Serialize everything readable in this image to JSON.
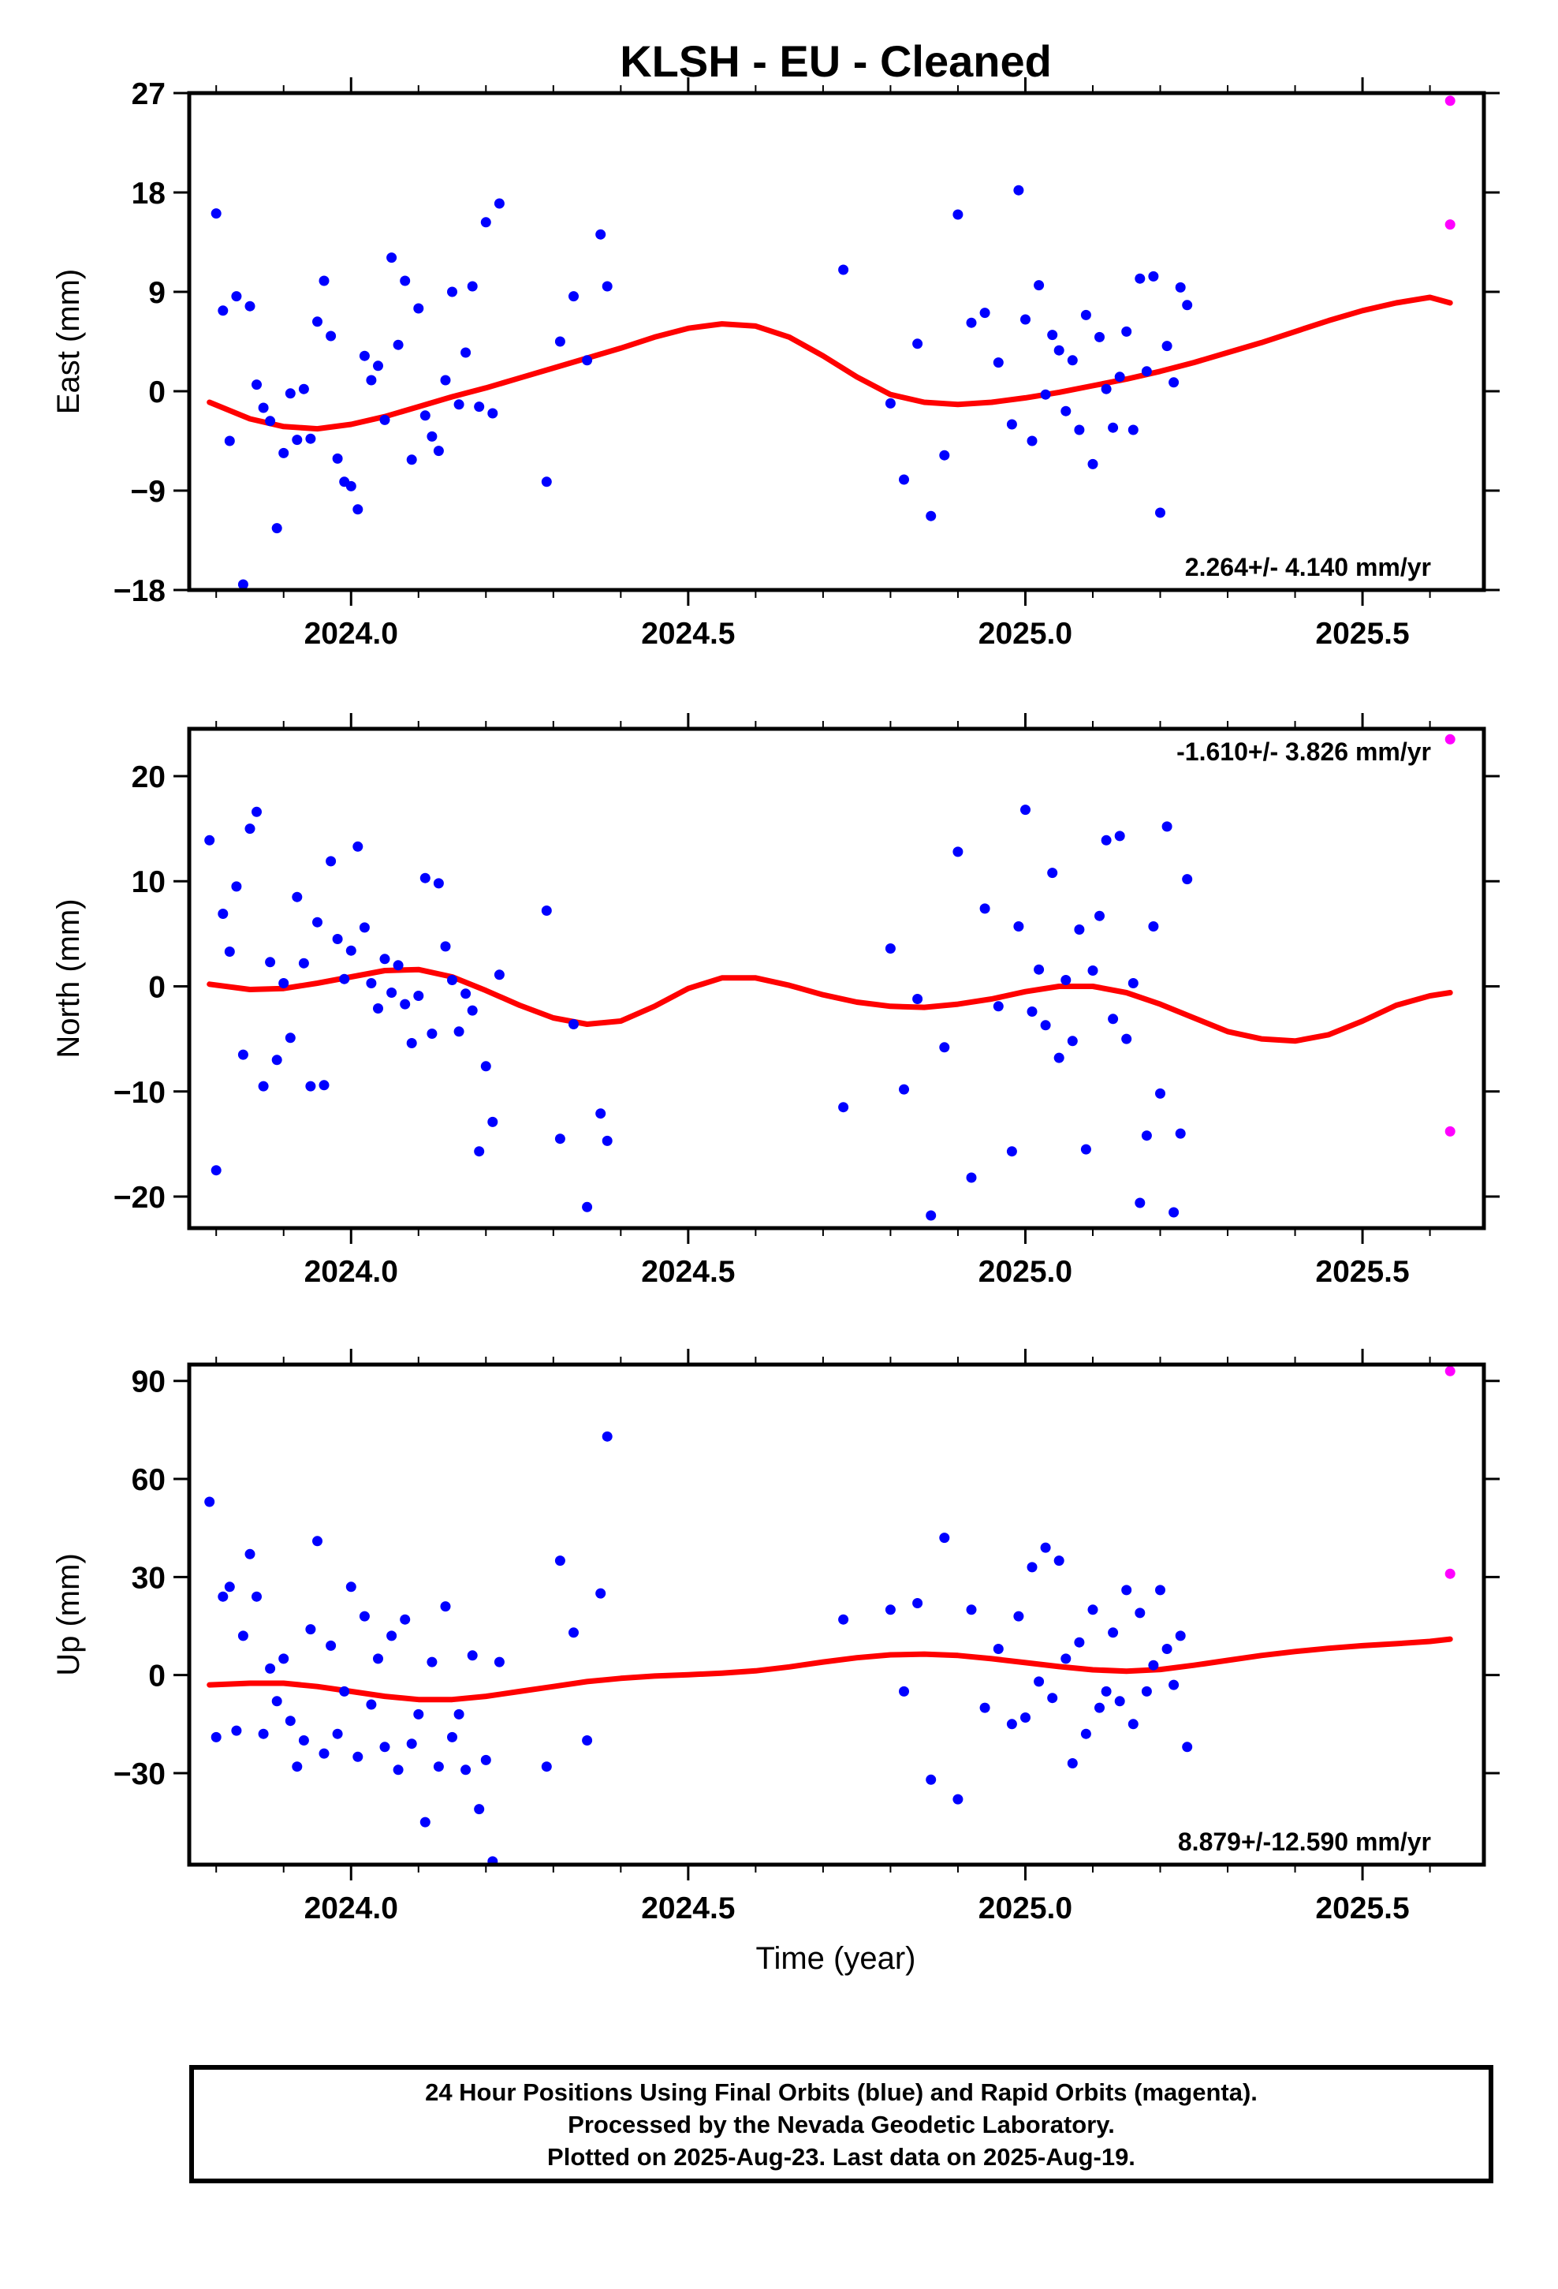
{
  "title": "KLSH  - EU - Cleaned",
  "xlabel": "Time (year)",
  "colors": {
    "final_orbits": "#0000ff",
    "rapid_orbits": "#ff00ff",
    "model": "#ff0000"
  },
  "footer": {
    "line1": "24 Hour Positions Using Final Orbits (blue) and Rapid Orbits (magenta).",
    "line2": "Processed by the Nevada Geodetic Laboratory.",
    "line3": "Plotted on 2025-Aug-23. Last data on 2025-Aug-19."
  },
  "chart_data": [
    {
      "type": "scatter",
      "component": "east",
      "title": "KLSH  - EU - Cleaned",
      "xlabel": "",
      "ylabel": "East (mm)",
      "xlim": [
        2023.76,
        2025.68
      ],
      "ylim": [
        -18,
        27
      ],
      "x_ticks": [
        2024.0,
        2024.5,
        2025.0,
        2025.5
      ],
      "x_tick_labels": [
        "2024.0",
        "2024.5",
        "2025.0",
        "2025.5"
      ],
      "y_ticks": [
        27,
        18,
        9,
        0,
        -9,
        -18
      ],
      "y_tick_labels": [
        "27",
        "18",
        "9",
        "0",
        "−9",
        "−18"
      ],
      "rate_label": "2.264+/- 4.140 mm/yr",
      "rate_position": "bottom-right",
      "model": {
        "name": "fit",
        "x": [
          2023.79,
          2023.85,
          2023.9,
          2023.95,
          2024.0,
          2024.05,
          2024.1,
          2024.15,
          2024.2,
          2024.25,
          2024.3,
          2024.35,
          2024.4,
          2024.45,
          2024.5,
          2024.55,
          2024.6,
          2024.65,
          2024.7,
          2024.75,
          2024.8,
          2024.85,
          2024.9,
          2024.95,
          2025.0,
          2025.05,
          2025.1,
          2025.15,
          2025.2,
          2025.25,
          2025.3,
          2025.35,
          2025.4,
          2025.45,
          2025.5,
          2025.55,
          2025.6,
          2025.63
        ],
        "y": [
          -1.0,
          -2.5,
          -3.2,
          -3.4,
          -3.0,
          -2.3,
          -1.4,
          -0.5,
          0.3,
          1.2,
          2.1,
          3.0,
          3.9,
          4.9,
          5.7,
          6.1,
          5.9,
          4.9,
          3.2,
          1.3,
          -0.3,
          -1.0,
          -1.2,
          -1.0,
          -0.6,
          -0.1,
          0.5,
          1.1,
          1.8,
          2.6,
          3.5,
          4.4,
          5.4,
          6.4,
          7.3,
          8.0,
          8.5,
          8.0
        ]
      },
      "series": [
        {
          "name": "final",
          "color": "#0000ff",
          "x": [
            2023.8,
            2023.81,
            2023.82,
            2023.83,
            2023.84,
            2023.85,
            2023.86,
            2023.87,
            2023.88,
            2023.89,
            2023.9,
            2023.91,
            2023.92,
            2023.93,
            2023.94,
            2023.95,
            2023.96,
            2023.97,
            2023.98,
            2023.99,
            2024.0,
            2024.01,
            2024.02,
            2024.03,
            2024.04,
            2024.05,
            2024.06,
            2024.07,
            2024.08,
            2024.09,
            2024.1,
            2024.11,
            2024.12,
            2024.13,
            2024.14,
            2024.15,
            2024.16,
            2024.17,
            2024.18,
            2024.19,
            2024.2,
            2024.21,
            2024.22,
            2024.29,
            2024.31,
            2024.33,
            2024.35,
            2024.37,
            2024.38,
            2024.73,
            2024.8,
            2024.82,
            2024.84,
            2024.86,
            2024.88,
            2024.9,
            2024.92,
            2024.94,
            2024.96,
            2024.98,
            2024.99,
            2025.0,
            2025.01,
            2025.02,
            2025.03,
            2025.04,
            2025.05,
            2025.06,
            2025.07,
            2025.08,
            2025.09,
            2025.1,
            2025.11,
            2025.12,
            2025.13,
            2025.14,
            2025.15,
            2025.16,
            2025.17,
            2025.18,
            2025.19,
            2025.2,
            2025.21,
            2025.22,
            2025.23,
            2025.24
          ],
          "y": [
            16.1,
            7.3,
            -4.5,
            8.6,
            -17.5,
            7.7,
            0.6,
            -1.5,
            -2.7,
            -12.4,
            -5.6,
            -0.2,
            -4.4,
            0.2,
            -4.3,
            6.3,
            10.0,
            5.0,
            -6.1,
            -8.2,
            -8.6,
            -10.7,
            3.2,
            1.0,
            2.3,
            -2.6,
            12.1,
            4.2,
            10.0,
            -6.2,
            7.5,
            -2.2,
            -4.1,
            -5.4,
            1.0,
            9.0,
            -1.2,
            3.5,
            9.5,
            -1.4,
            15.3,
            -2.0,
            17.0,
            -8.2,
            4.5,
            8.6,
            2.8,
            14.2,
            9.5,
            11.0,
            -1.1,
            -8.0,
            4.3,
            -11.3,
            -5.8,
            16.0,
            6.2,
            7.1,
            2.6,
            -3.0,
            18.2,
            6.5,
            -4.5,
            9.6,
            -0.3,
            5.1,
            3.7,
            -1.8,
            2.8,
            -3.5,
            6.9,
            -6.6,
            4.9,
            0.2,
            -3.3,
            1.3,
            5.4,
            -3.5,
            10.2,
            1.8,
            10.4,
            -11.0,
            4.1,
            0.8,
            9.4,
            7.8
          ]
        },
        {
          "name": "rapid",
          "color": "#ff00ff",
          "x": [
            2025.63,
            2025.63
          ],
          "y": [
            26.3,
            15.1
          ]
        }
      ]
    },
    {
      "type": "scatter",
      "component": "north",
      "xlabel": "",
      "ylabel": "North (mm)",
      "xlim": [
        2023.76,
        2025.68
      ],
      "ylim": [
        -23,
        24.5
      ],
      "x_ticks": [
        2024.0,
        2024.5,
        2025.0,
        2025.5
      ],
      "x_tick_labels": [
        "2024.0",
        "2024.5",
        "2025.0",
        "2025.5"
      ],
      "y_ticks": [
        20,
        10,
        0,
        -10,
        -20
      ],
      "y_tick_labels": [
        "20",
        "10",
        "0",
        "−10",
        "−20"
      ],
      "rate_label": "-1.610+/- 3.826 mm/yr",
      "rate_position": "top-right",
      "model": {
        "name": "fit",
        "x": [
          2023.79,
          2023.85,
          2023.9,
          2023.95,
          2024.0,
          2024.05,
          2024.1,
          2024.15,
          2024.2,
          2024.25,
          2024.3,
          2024.35,
          2024.4,
          2024.45,
          2024.5,
          2024.55,
          2024.6,
          2024.65,
          2024.7,
          2024.75,
          2024.8,
          2024.85,
          2024.9,
          2024.95,
          2025.0,
          2025.05,
          2025.1,
          2025.15,
          2025.2,
          2025.25,
          2025.3,
          2025.35,
          2025.4,
          2025.45,
          2025.5,
          2025.55,
          2025.6,
          2025.63
        ],
        "y": [
          0.2,
          -0.3,
          -0.2,
          0.3,
          0.9,
          1.5,
          1.6,
          0.9,
          -0.4,
          -1.8,
          -3.0,
          -3.6,
          -3.3,
          -1.9,
          -0.2,
          0.8,
          0.8,
          0.1,
          -0.8,
          -1.5,
          -1.9,
          -2.0,
          -1.7,
          -1.2,
          -0.5,
          0.0,
          0.0,
          -0.6,
          -1.7,
          -3.0,
          -4.3,
          -5.0,
          -5.2,
          -4.6,
          -3.3,
          -1.8,
          -0.9,
          -0.6
        ]
      },
      "series": [
        {
          "name": "final",
          "color": "#0000ff",
          "x": [
            2023.79,
            2023.8,
            2023.81,
            2023.82,
            2023.83,
            2023.84,
            2023.85,
            2023.86,
            2023.87,
            2023.88,
            2023.89,
            2023.9,
            2023.91,
            2023.92,
            2023.93,
            2023.94,
            2023.95,
            2023.96,
            2023.97,
            2023.98,
            2023.99,
            2024.0,
            2024.01,
            2024.02,
            2024.03,
            2024.04,
            2024.05,
            2024.06,
            2024.07,
            2024.08,
            2024.09,
            2024.1,
            2024.11,
            2024.12,
            2024.13,
            2024.14,
            2024.15,
            2024.16,
            2024.17,
            2024.18,
            2024.19,
            2024.2,
            2024.21,
            2024.22,
            2024.29,
            2024.31,
            2024.33,
            2024.35,
            2024.37,
            2024.38,
            2024.73,
            2024.8,
            2024.82,
            2024.84,
            2024.86,
            2024.88,
            2024.9,
            2024.92,
            2024.94,
            2024.96,
            2024.98,
            2024.99,
            2025.0,
            2025.01,
            2025.02,
            2025.03,
            2025.04,
            2025.05,
            2025.06,
            2025.07,
            2025.08,
            2025.09,
            2025.1,
            2025.11,
            2025.12,
            2025.13,
            2025.14,
            2025.15,
            2025.16,
            2025.17,
            2025.18,
            2025.19,
            2025.2,
            2025.21,
            2025.22,
            2025.23,
            2025.24
          ],
          "y": [
            13.9,
            -17.5,
            6.9,
            3.3,
            9.5,
            -6.5,
            15.0,
            16.6,
            -9.5,
            2.3,
            -7.0,
            0.3,
            -4.9,
            8.5,
            2.2,
            -9.5,
            6.1,
            -9.4,
            11.9,
            4.5,
            0.7,
            3.4,
            13.3,
            5.6,
            0.3,
            -2.1,
            2.6,
            -0.6,
            2.0,
            -1.7,
            -5.4,
            -0.9,
            10.3,
            -4.5,
            9.8,
            3.8,
            0.6,
            -4.3,
            -0.7,
            -2.3,
            -15.7,
            -7.6,
            -12.9,
            1.1,
            7.2,
            -14.5,
            -3.6,
            -21.0,
            -12.1,
            -14.7,
            -11.5,
            3.6,
            -9.8,
            -1.2,
            -21.8,
            -5.8,
            12.8,
            -18.2,
            7.4,
            -1.9,
            -15.7,
            5.7,
            16.8,
            -2.4,
            1.6,
            -3.7,
            10.8,
            -6.8,
            0.6,
            -5.2,
            5.4,
            -15.5,
            1.5,
            6.7,
            13.9,
            -3.1,
            14.3,
            -5.0,
            0.3,
            -20.6,
            -14.2,
            5.7,
            -10.2,
            15.2,
            -21.5,
            -14.0,
            10.2
          ]
        },
        {
          "name": "rapid",
          "color": "#ff00ff",
          "x": [
            2025.63,
            2025.63
          ],
          "y": [
            23.5,
            -13.8
          ]
        }
      ]
    },
    {
      "type": "scatter",
      "component": "up",
      "xlabel": "Time (year)",
      "ylabel": "Up (mm)",
      "xlim": [
        2023.76,
        2025.68
      ],
      "ylim": [
        -58,
        95
      ],
      "x_ticks": [
        2024.0,
        2024.5,
        2025.0,
        2025.5
      ],
      "x_tick_labels": [
        "2024.0",
        "2024.5",
        "2025.0",
        "2025.5"
      ],
      "y_ticks": [
        90,
        60,
        30,
        0,
        -30
      ],
      "y_tick_labels": [
        "90",
        "60",
        "30",
        "0",
        "−30"
      ],
      "rate_label": "8.879+/-12.590 mm/yr",
      "rate_position": "bottom-right",
      "model": {
        "name": "fit",
        "x": [
          2023.79,
          2023.85,
          2023.9,
          2023.95,
          2024.0,
          2024.05,
          2024.1,
          2024.15,
          2024.2,
          2024.25,
          2024.3,
          2024.35,
          2024.4,
          2024.45,
          2024.5,
          2024.55,
          2024.6,
          2024.65,
          2024.7,
          2024.75,
          2024.8,
          2024.85,
          2024.9,
          2024.95,
          2025.0,
          2025.05,
          2025.1,
          2025.15,
          2025.2,
          2025.25,
          2025.3,
          2025.35,
          2025.4,
          2025.45,
          2025.5,
          2025.55,
          2025.6,
          2025.63
        ],
        "y": [
          -3.0,
          -2.5,
          -2.5,
          -3.5,
          -5.0,
          -6.5,
          -7.5,
          -7.5,
          -6.5,
          -5.0,
          -3.5,
          -2.0,
          -1.0,
          -0.3,
          0.1,
          0.6,
          1.3,
          2.5,
          4.0,
          5.3,
          6.2,
          6.4,
          6.0,
          5.0,
          3.8,
          2.6,
          1.6,
          1.2,
          1.7,
          3.0,
          4.5,
          6.0,
          7.2,
          8.2,
          9.0,
          9.6,
          10.3,
          11.0
        ]
      },
      "series": [
        {
          "name": "final",
          "color": "#0000ff",
          "x": [
            2023.79,
            2023.8,
            2023.81,
            2023.82,
            2023.83,
            2023.84,
            2023.85,
            2023.86,
            2023.87,
            2023.88,
            2023.89,
            2023.9,
            2023.91,
            2023.92,
            2023.93,
            2023.94,
            2023.95,
            2023.96,
            2023.97,
            2023.98,
            2023.99,
            2024.0,
            2024.01,
            2024.02,
            2024.03,
            2024.04,
            2024.05,
            2024.06,
            2024.07,
            2024.08,
            2024.09,
            2024.1,
            2024.11,
            2024.12,
            2024.13,
            2024.14,
            2024.15,
            2024.16,
            2024.17,
            2024.18,
            2024.19,
            2024.2,
            2024.21,
            2024.22,
            2024.29,
            2024.31,
            2024.33,
            2024.35,
            2024.37,
            2024.38,
            2024.73,
            2024.8,
            2024.82,
            2024.84,
            2024.86,
            2024.88,
            2024.9,
            2024.92,
            2024.94,
            2024.96,
            2024.98,
            2024.99,
            2025.0,
            2025.01,
            2025.02,
            2025.03,
            2025.04,
            2025.05,
            2025.06,
            2025.07,
            2025.08,
            2025.09,
            2025.1,
            2025.11,
            2025.12,
            2025.13,
            2025.14,
            2025.15,
            2025.16,
            2025.17,
            2025.18,
            2025.19,
            2025.2,
            2025.21,
            2025.22,
            2025.23,
            2025.24
          ],
          "y": [
            53.0,
            -19.0,
            24.0,
            27.0,
            -17.0,
            12.0,
            37.0,
            24.0,
            -18.0,
            2.0,
            -8.0,
            5.0,
            -14.0,
            -28.0,
            -20.0,
            14.0,
            41.0,
            -24.0,
            9.0,
            -18.0,
            -5.0,
            27.0,
            -25.0,
            18.0,
            -9.0,
            5.0,
            -22.0,
            12.0,
            -29.0,
            17.0,
            -21.0,
            -12.0,
            -45.0,
            4.0,
            -28.0,
            21.0,
            -19.0,
            -12.0,
            -29.0,
            6.0,
            -41.0,
            -26.0,
            -57.0,
            4.0,
            -28.0,
            35.0,
            13.0,
            -20.0,
            25.0,
            73.0,
            17.0,
            20.0,
            -5.0,
            22.0,
            -32.0,
            42.0,
            -38.0,
            20.0,
            -10.0,
            8.0,
            -15.0,
            18.0,
            -13.0,
            33.0,
            -2.0,
            39.0,
            -7.0,
            35.0,
            5.0,
            -27.0,
            10.0,
            -18.0,
            20.0,
            -10.0,
            -5.0,
            13.0,
            -8.0,
            26.0,
            -15.0,
            19.0,
            -5.0,
            3.0,
            26.0,
            8.0,
            -3.0,
            12.0,
            -22.0
          ]
        },
        {
          "name": "rapid",
          "color": "#ff00ff",
          "x": [
            2025.63,
            2025.63
          ],
          "y": [
            93.0,
            31.0
          ]
        }
      ]
    }
  ]
}
